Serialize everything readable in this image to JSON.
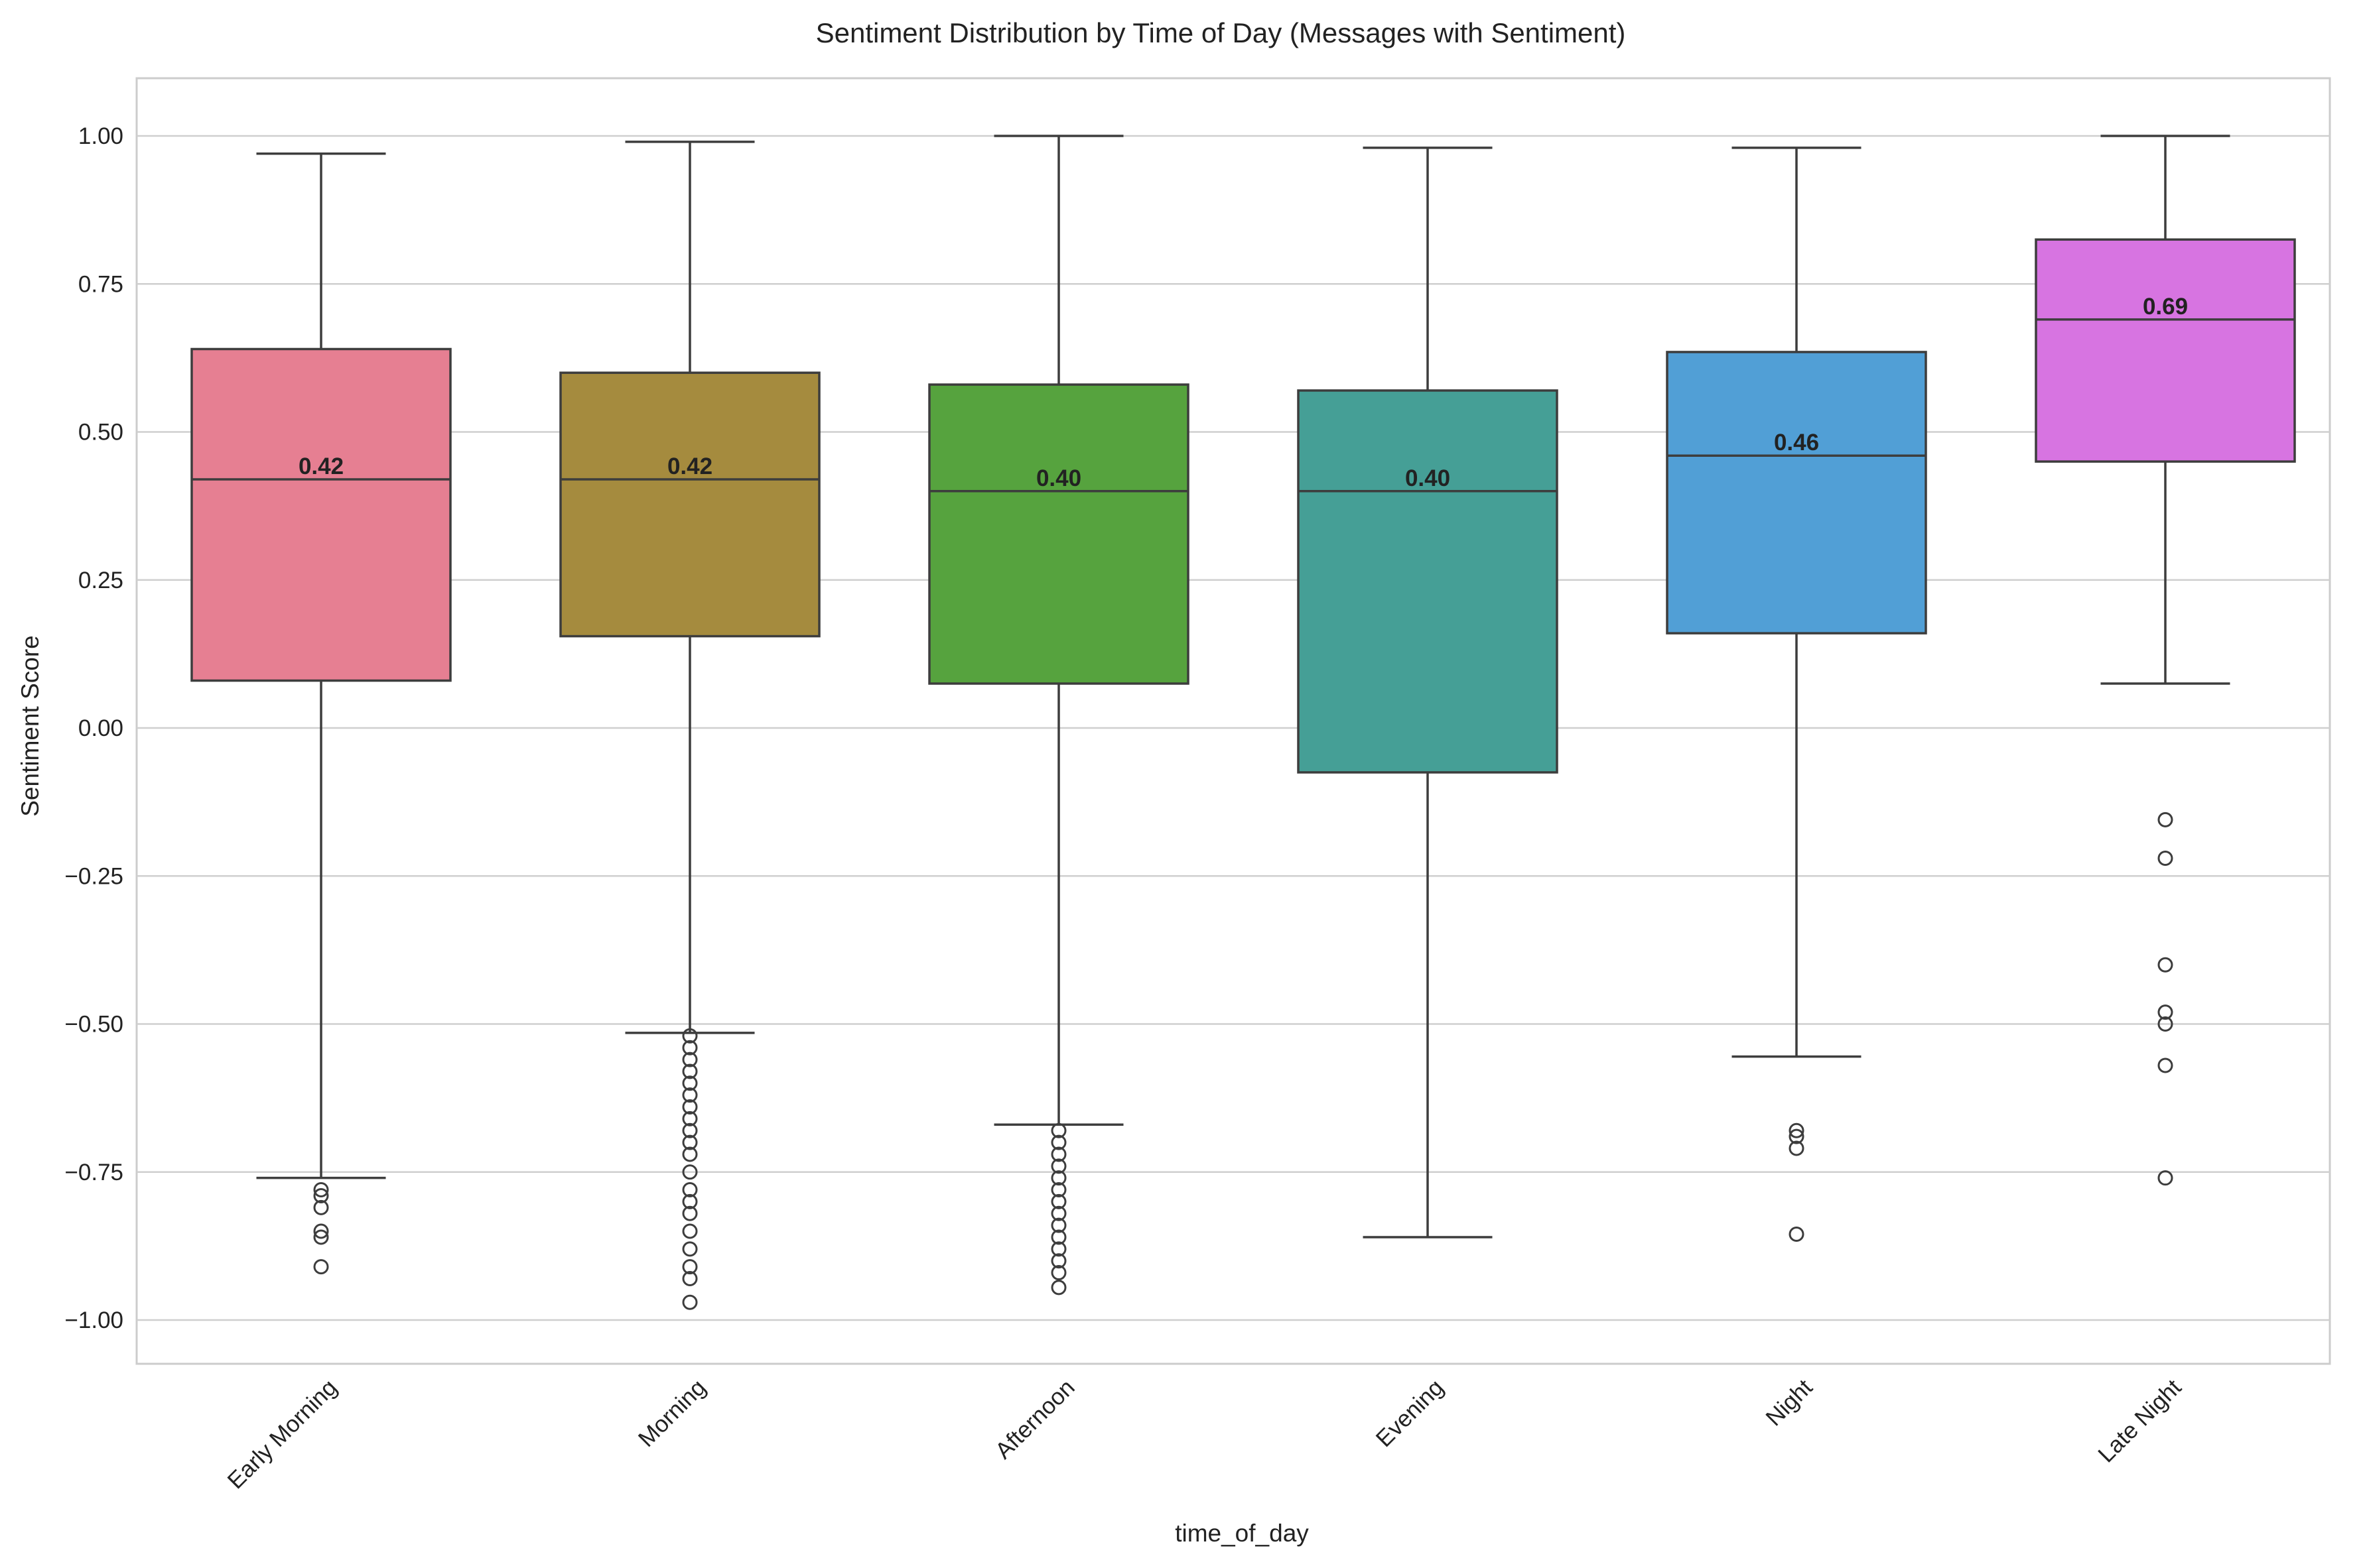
{
  "chart_data": {
    "type": "box",
    "title": "Sentiment Distribution by Time of Day (Messages with Sentiment)",
    "xlabel": "time_of_day",
    "ylabel": "Sentiment Score",
    "ylim": [
      -1.07,
      1.1
    ],
    "yticks": [
      1.0,
      0.75,
      0.5,
      0.25,
      0.0,
      -0.25,
      -0.5,
      -0.75,
      -1.0
    ],
    "ytick_labels": [
      "1.00",
      "0.75",
      "0.50",
      "0.25",
      "0.00",
      "−0.25",
      "−0.50",
      "−0.75",
      "−1.00"
    ],
    "grid": true,
    "categories": [
      "Early Morning",
      "Morning",
      "Afternoon",
      "Evening",
      "Night",
      "Late Night"
    ],
    "boxes": [
      {
        "category": "Early Morning",
        "color": "#e67f92",
        "q1": 0.08,
        "median": 0.42,
        "q3": 0.64,
        "whisker_low": -0.76,
        "whisker_high": 0.97,
        "median_label": "0.42",
        "outliers": [
          -0.78,
          -0.79,
          -0.81,
          -0.85,
          -0.86,
          -0.91
        ]
      },
      {
        "category": "Morning",
        "color": "#a58b3e",
        "q1": 0.155,
        "median": 0.42,
        "q3": 0.6,
        "whisker_low": -0.515,
        "whisker_high": 0.99,
        "median_label": "0.42",
        "outliers": [
          -0.52,
          -0.54,
          -0.56,
          -0.58,
          -0.6,
          -0.62,
          -0.64,
          -0.66,
          -0.68,
          -0.7,
          -0.72,
          -0.75,
          -0.78,
          -0.8,
          -0.82,
          -0.85,
          -0.88,
          -0.91,
          -0.93,
          -0.97
        ]
      },
      {
        "category": "Afternoon",
        "color": "#56a33e",
        "q1": 0.075,
        "median": 0.4,
        "q3": 0.58,
        "whisker_low": -0.67,
        "whisker_high": 1.0,
        "median_label": "0.40",
        "outliers": [
          -0.68,
          -0.7,
          -0.72,
          -0.74,
          -0.76,
          -0.78,
          -0.8,
          -0.82,
          -0.84,
          -0.86,
          -0.88,
          -0.9,
          -0.92,
          -0.945
        ]
      },
      {
        "category": "Evening",
        "color": "#459f96",
        "q1": -0.075,
        "median": 0.4,
        "q3": 0.57,
        "whisker_low": -0.86,
        "whisker_high": 0.98,
        "median_label": "0.40",
        "outliers": []
      },
      {
        "category": "Night",
        "color": "#519fd6",
        "q1": 0.16,
        "median": 0.46,
        "q3": 0.635,
        "whisker_low": -0.555,
        "whisker_high": 0.98,
        "median_label": "0.46",
        "outliers": [
          -0.68,
          -0.69,
          -0.71,
          -0.855
        ]
      },
      {
        "category": "Late Night",
        "color": "#d774e1",
        "q1": 0.45,
        "median": 0.69,
        "q3": 0.825,
        "whisker_low": 0.075,
        "whisker_high": 1.0,
        "median_label": "0.69",
        "outliers": [
          -0.155,
          -0.22,
          -0.4,
          -0.48,
          -0.5,
          -0.57,
          -0.76
        ]
      }
    ]
  }
}
